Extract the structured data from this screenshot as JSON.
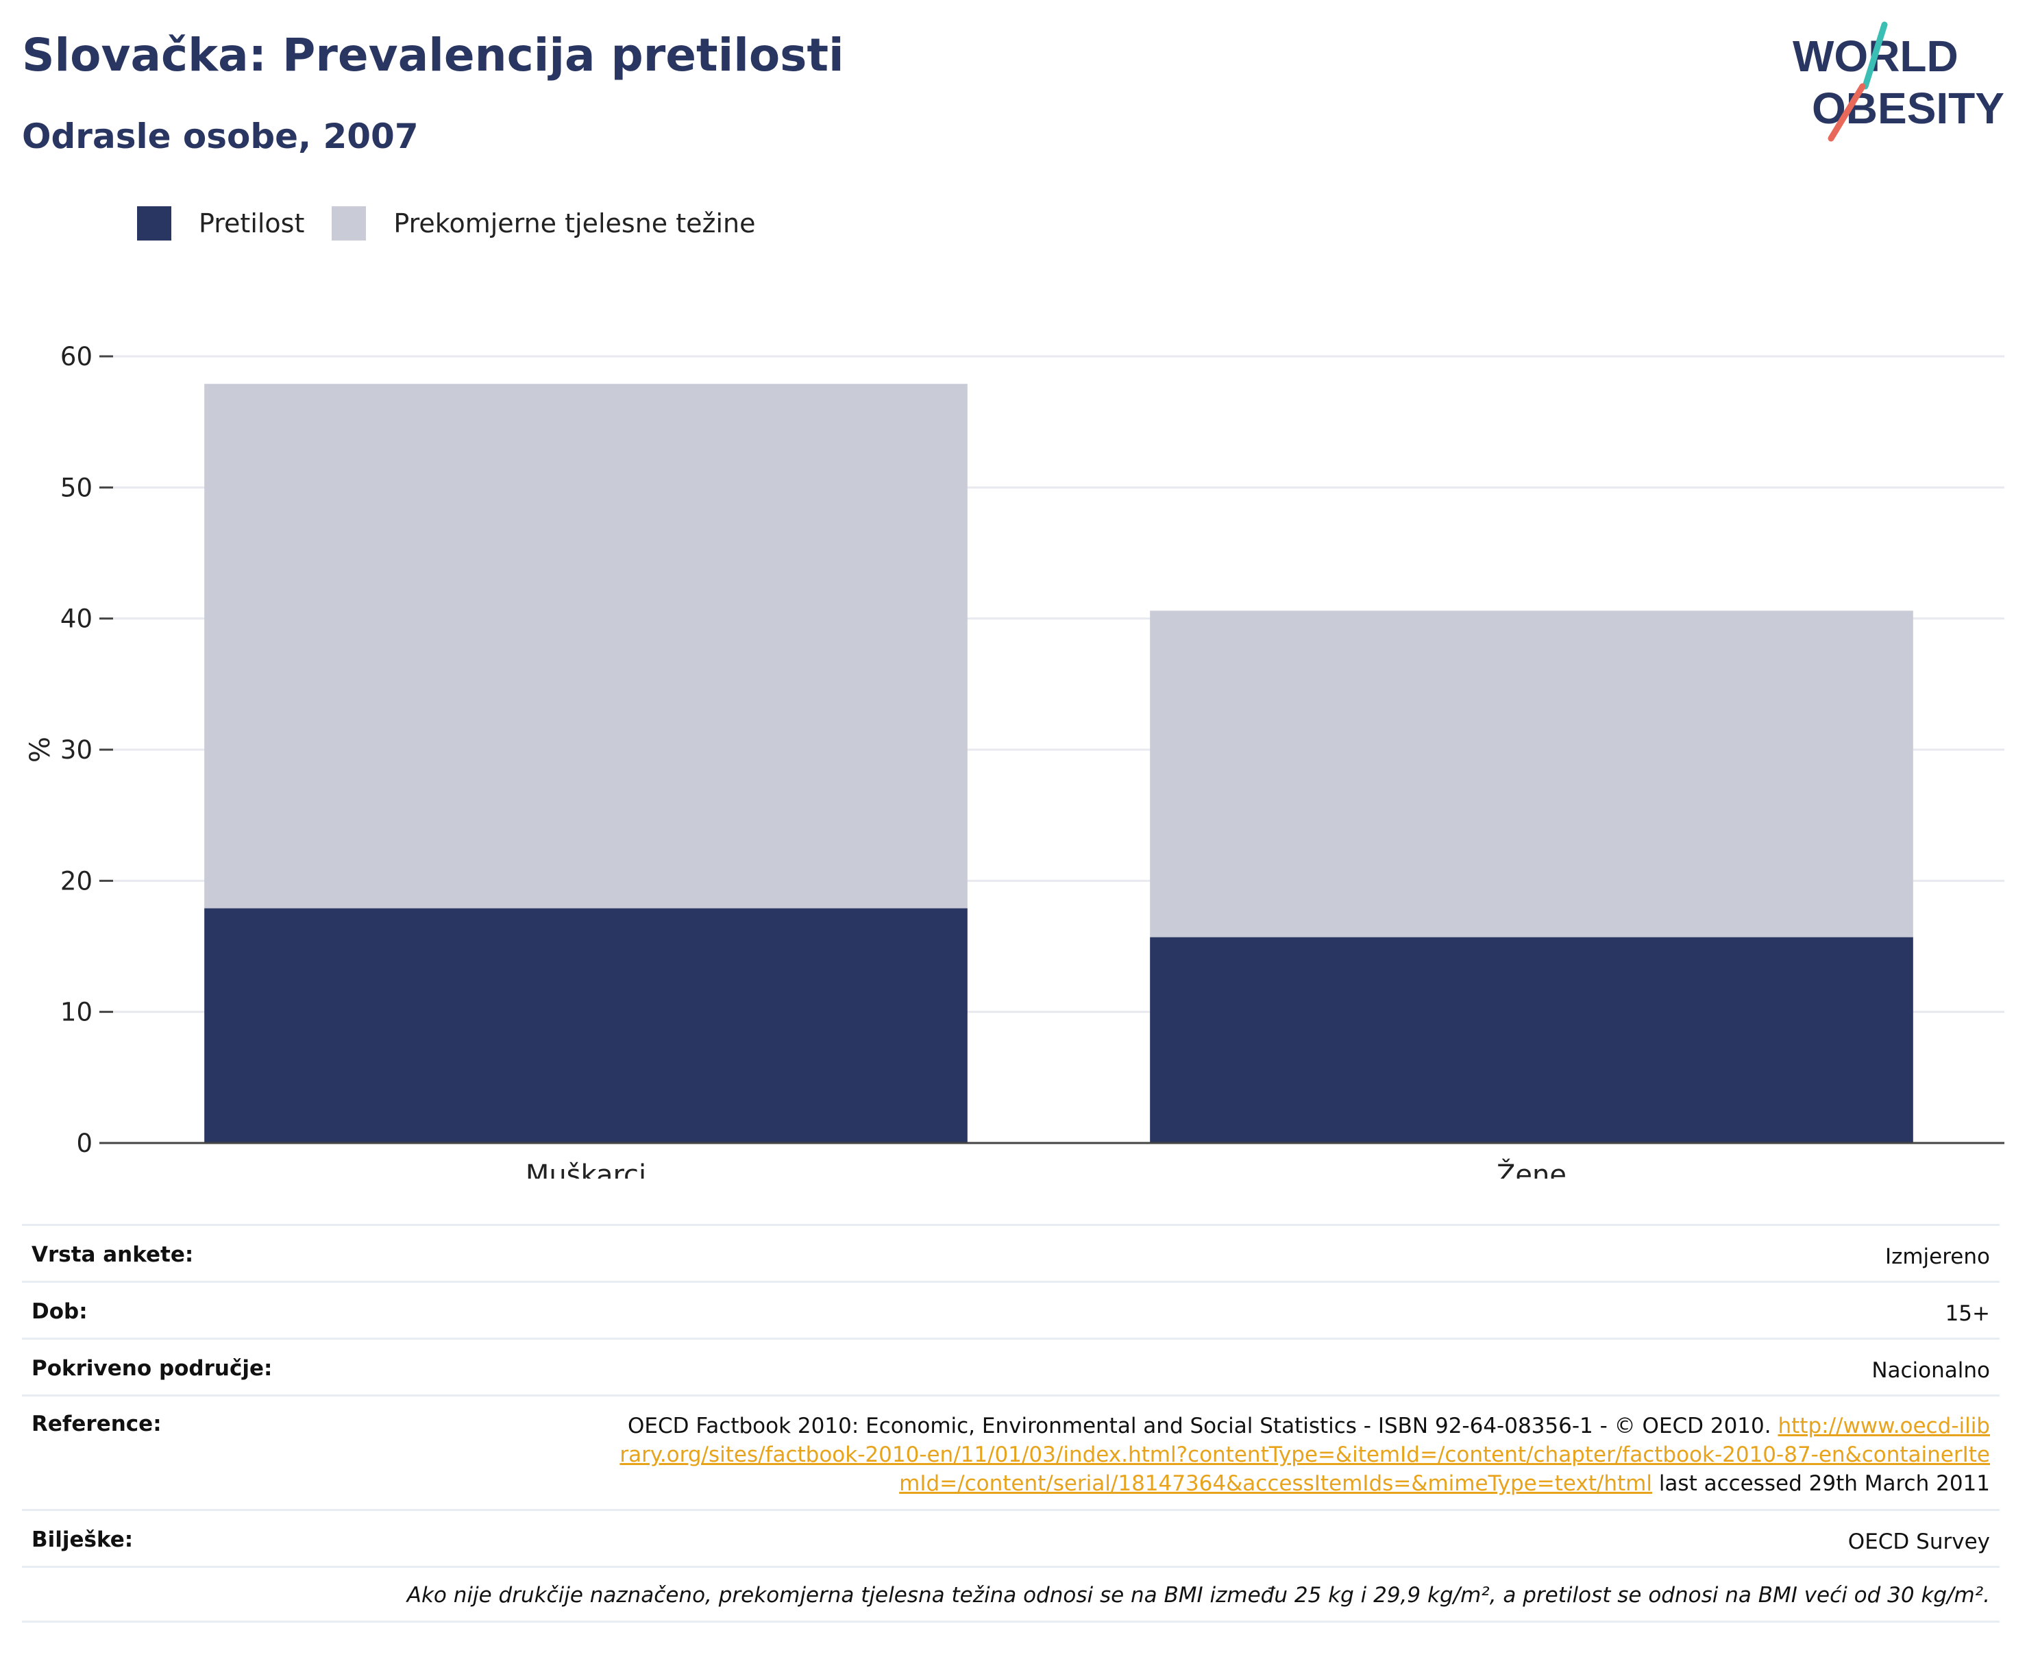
{
  "header": {
    "title": "Slovačka: Prevalencija pretilosti",
    "subtitle": "Odrasle osobe, 2007"
  },
  "logo": {
    "line1": "WORLD",
    "line2": "OBESITY"
  },
  "colors": {
    "obesity": "#2a3662",
    "overweight": "#c9ccd7",
    "accent_teal": "#3bbfb5",
    "accent_coral": "#e8685a",
    "link": "#e7a31c"
  },
  "legend": [
    {
      "label": "Pretilost",
      "color": "#2a3662"
    },
    {
      "label": "Prekomjerne tjelesne težine",
      "color": "#c9ccd7"
    }
  ],
  "chart_data": {
    "type": "bar",
    "stacked": true,
    "categories": [
      "Muškarci",
      "Žene"
    ],
    "series": [
      {
        "name": "Pretilost",
        "values": [
          17.9,
          15.7
        ]
      },
      {
        "name": "Prekomjerne tjelesne težine",
        "values": [
          40.0,
          24.9
        ]
      }
    ],
    "ylabel": "%",
    "ylim": [
      0,
      60
    ],
    "yticks": [
      "0",
      "10",
      "20",
      "30",
      "40",
      "50",
      "60"
    ],
    "grid": true,
    "legend_position": "top-left"
  },
  "meta": {
    "rows": [
      {
        "label": "Vrsta ankete:",
        "value": "Izmjereno"
      },
      {
        "label": "Dob:",
        "value": "15+"
      },
      {
        "label": "Pokriveno područje:",
        "value": "Nacionalno"
      }
    ],
    "reference": {
      "label": "Reference:",
      "text": "OECD Factbook 2010: Economic, Environmental and Social Statistics - ISBN 92-64-08356-1 - © OECD 2010.",
      "link": "http://www.oecd-ilibrary.org/sites/factbook-2010-en/11/01/03/index.html?contentType=&itemId=/content/chapter/factbook-2010-87-en&containerItemId=/content/serial/18147364&accessItemIds=&mimeType=text/html",
      "suffix": "last accessed 29th March 2011"
    },
    "notes": {
      "label": "Bilješke:",
      "value": "OECD Survey"
    },
    "footnote": "Ako nije drukčije naznačeno, prekomjerna tjelesna težina odnosi se na BMI između 25 kg i 29,9 kg/m², a pretilost se odnosi na BMI veći od 30 kg/m²."
  }
}
